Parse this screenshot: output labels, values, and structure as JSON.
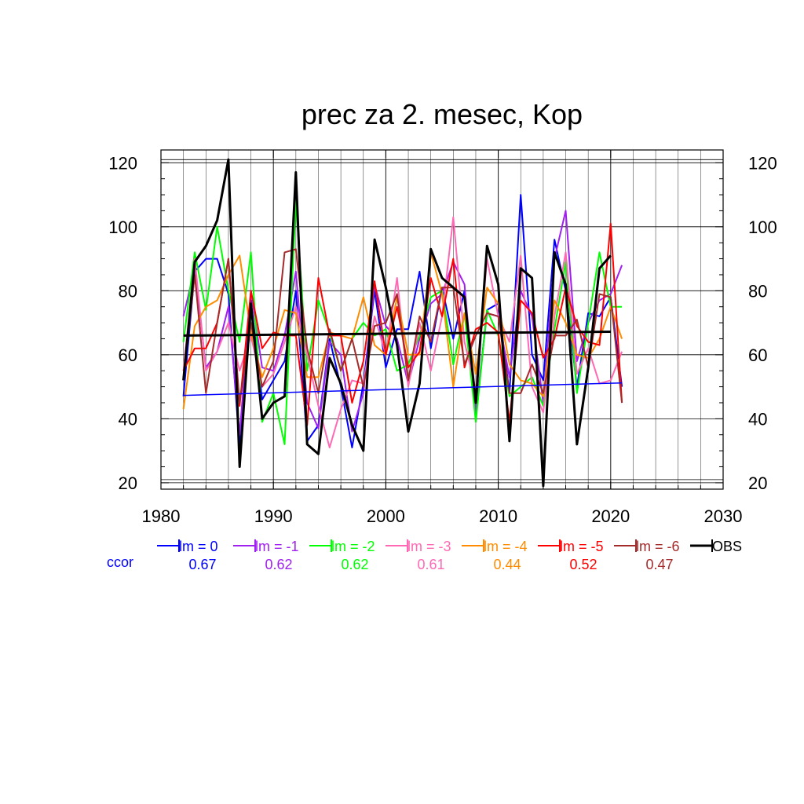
{
  "chart_data": {
    "type": "line",
    "title": "prec za 2. mesec, Kop",
    "xlim": [
      1980,
      2030
    ],
    "ylim": [
      18,
      124
    ],
    "x_ticks": [
      1980,
      1990,
      2000,
      2010,
      2020,
      2030
    ],
    "y_ticks": [
      20,
      40,
      60,
      80,
      100,
      120
    ],
    "y_ticks_right": [
      20,
      40,
      60,
      80,
      100,
      120
    ],
    "grid": true,
    "x": [
      1982,
      1983,
      1984,
      1985,
      1986,
      1987,
      1988,
      1989,
      1990,
      1991,
      1992,
      1993,
      1994,
      1995,
      1996,
      1997,
      1998,
      1999,
      2000,
      2001,
      2002,
      2003,
      2004,
      2005,
      2006,
      2007,
      2008,
      2009,
      2010,
      2011,
      2012,
      2013,
      2014,
      2015,
      2016,
      2017,
      2018,
      2019,
      2020,
      2021
    ],
    "series": [
      {
        "name": "lm = 0",
        "color": "#0000ff",
        "values": [
          47,
          86,
          90,
          90,
          79,
          31,
          77,
          46,
          52,
          58,
          80,
          33,
          38,
          65,
          50,
          31,
          51,
          80,
          56,
          68,
          68,
          86,
          62,
          81,
          65,
          80,
          40,
          74,
          76,
          48,
          110,
          60,
          52,
          96,
          80,
          50,
          73,
          72,
          78,
          50
        ]
      },
      {
        "name": "lm = -1",
        "color": "#a020f0",
        "values": [
          72,
          87,
          56,
          61,
          75,
          35,
          80,
          56,
          55,
          66,
          86,
          45,
          37,
          64,
          60,
          36,
          48,
          82,
          69,
          65,
          51,
          65,
          76,
          79,
          89,
          82,
          42,
          73,
          72,
          53,
          80,
          72,
          45,
          90,
          105,
          58,
          70,
          77,
          79,
          88
        ]
      },
      {
        "name": "lm = -2",
        "color": "#00ff00",
        "values": [
          64,
          92,
          74,
          100,
          80,
          64,
          92,
          39,
          48,
          32,
          108,
          55,
          77,
          67,
          55,
          65,
          70,
          66,
          68,
          55,
          57,
          66,
          78,
          80,
          57,
          73,
          39,
          74,
          66,
          47,
          50,
          53,
          44,
          68,
          89,
          48,
          70,
          92,
          75,
          75
        ]
      },
      {
        "name": "lm = -3",
        "color": "#ff69b4",
        "values": [
          55,
          90,
          55,
          61,
          70,
          55,
          66,
          50,
          54,
          64,
          75,
          60,
          44,
          31,
          43,
          52,
          51,
          72,
          60,
          84,
          50,
          70,
          55,
          72,
          103,
          64,
          49,
          90,
          72,
          64,
          91,
          50,
          42,
          72,
          92,
          54,
          62,
          51,
          52,
          61
        ]
      },
      {
        "name": "lm = -4",
        "color": "#ff8c00",
        "values": [
          43,
          69,
          75,
          77,
          85,
          91,
          67,
          53,
          62,
          74,
          73,
          53,
          53,
          67,
          66,
          65,
          78,
          63,
          60,
          78,
          60,
          60,
          92,
          79,
          50,
          73,
          54,
          81,
          76,
          57,
          52,
          51,
          47,
          77,
          70,
          60,
          59,
          65,
          75,
          65
        ]
      },
      {
        "name": "lm = -5",
        "color": "#ff0000",
        "values": [
          55,
          62,
          62,
          70,
          90,
          44,
          80,
          62,
          67,
          66,
          66,
          38,
          84,
          66,
          66,
          45,
          58,
          83,
          60,
          75,
          56,
          61,
          84,
          72,
          90,
          56,
          68,
          70,
          67,
          39,
          77,
          73,
          59,
          65,
          81,
          69,
          64,
          63,
          101,
          45
        ]
      },
      {
        "name": "lm = -6",
        "color": "#a52a2a",
        "values": [
          52,
          85,
          48,
          70,
          90,
          45,
          70,
          50,
          58,
          92,
          93,
          62,
          48,
          68,
          55,
          65,
          50,
          69,
          70,
          79,
          52,
          72,
          64,
          81,
          81,
          57,
          66,
          73,
          72,
          48,
          48,
          57,
          48,
          66,
          66,
          71,
          56,
          79,
          78,
          45
        ]
      },
      {
        "name": "OBS",
        "color": "#000000",
        "values": [
          52,
          89,
          94,
          102,
          121,
          25,
          76,
          40,
          45,
          47,
          117,
          32,
          29,
          59,
          51,
          38,
          30,
          96,
          81,
          63,
          36,
          51,
          93,
          84,
          81,
          78,
          45,
          94,
          82,
          33,
          87,
          84,
          19,
          92,
          82,
          32,
          56,
          87,
          91,
          null
        ]
      }
    ],
    "trend_lines": [
      {
        "series": "lm = 0",
        "color": "#0000ff",
        "x": [
          1982,
          2021
        ],
        "y": [
          47.3,
          51.2
        ]
      },
      {
        "series": "OBS",
        "color": "#000000",
        "x": [
          1982,
          2020
        ],
        "y": [
          66.0,
          67.2
        ]
      }
    ],
    "legend": {
      "placement": "bottom",
      "row_label": "ccor",
      "entries": [
        {
          "label": "lm = 0",
          "ccor": "0.67",
          "color": "#0000ff"
        },
        {
          "label": "lm = -1",
          "ccor": "0.62",
          "color": "#a020f0"
        },
        {
          "label": "lm = -2",
          "ccor": "0.62",
          "color": "#00ff00"
        },
        {
          "label": "lm = -3",
          "ccor": "0.61",
          "color": "#ff69b4"
        },
        {
          "label": "lm = -4",
          "ccor": "0.44",
          "color": "#ff8c00"
        },
        {
          "label": "lm = -5",
          "ccor": "0.52",
          "color": "#ff0000"
        },
        {
          "label": "lm = -6",
          "ccor": "0.47",
          "color": "#a52a2a"
        },
        {
          "label": "OBS",
          "ccor": "",
          "color": "#000000"
        }
      ]
    }
  }
}
